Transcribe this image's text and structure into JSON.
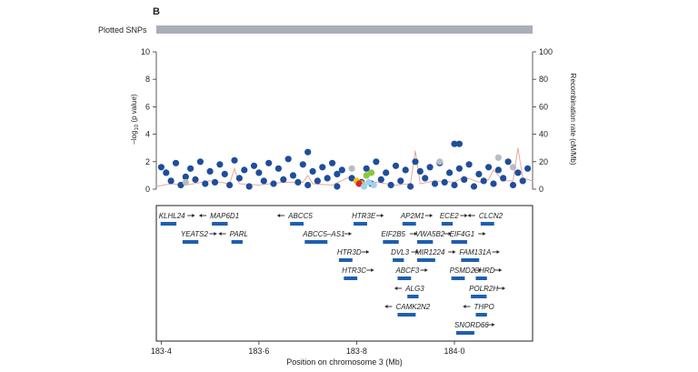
{
  "panel_label": "B",
  "plotted_snps_label": "Plotted SNPs",
  "chart_data": {
    "type": "scatter",
    "title": "",
    "xlabel": "Position on chromosome 3 (Mb)",
    "ylabel_left_prefix": "–log",
    "ylabel_left_sub": "10",
    "ylabel_left_suffix": " (p value)",
    "ylabel_right": "Recombination rate (cM/Mb)",
    "xlim": [
      183.39,
      184.16
    ],
    "ylim": [
      0,
      10
    ],
    "ylim_right": [
      0,
      100
    ],
    "x_ticks": [
      "183·4",
      "183·6",
      "183·8",
      "184·0"
    ],
    "x_tick_values": [
      183.4,
      183.6,
      183.8,
      184.0
    ],
    "y_ticks": [
      "0",
      "2",
      "4",
      "6",
      "8",
      "10"
    ],
    "y_tick_values": [
      0,
      2,
      4,
      6,
      8,
      10
    ],
    "y2_ticks": [
      "0",
      "20",
      "40",
      "60",
      "80",
      "100"
    ],
    "y2_tick_values": [
      0,
      20,
      40,
      60,
      80,
      100
    ],
    "grid": false,
    "colors": {
      "snp": "#1f4e9a",
      "snp_gray": "#b8bcc3",
      "ld_high": "#d9252a",
      "ld_mid": "#f2c31b",
      "ld_green": "#8dc63f",
      "ld_light": "#9fd3ee",
      "recomb": "#e8a89a",
      "gene": "#1f5fae",
      "axis": "#333333",
      "track": "#a9afb8"
    },
    "recombination": {
      "x": [
        183.39,
        183.42,
        183.45,
        183.5,
        183.54,
        183.55,
        183.56,
        183.6,
        183.65,
        183.69,
        183.7,
        183.71,
        183.75,
        183.78,
        183.79,
        183.8,
        183.84,
        183.88,
        183.91,
        183.92,
        183.93,
        183.96,
        184.0,
        184.02,
        184.05,
        184.07,
        184.08,
        184.1,
        184.12,
        184.13,
        184.14,
        184.16
      ],
      "y": [
        2,
        4,
        3,
        6,
        4,
        15,
        4,
        3,
        5,
        5,
        10,
        4,
        3,
        8,
        10,
        3,
        5,
        3,
        4,
        28,
        4,
        6,
        5,
        9,
        5,
        7,
        14,
        6,
        6,
        30,
        8,
        6
      ]
    },
    "series": [
      {
        "name": "",
        "color": "#1f4e9a",
        "x": [
          183.4,
          183.41,
          183.43,
          183.45,
          183.46,
          183.48,
          183.5,
          183.52,
          183.53,
          183.55,
          183.57,
          183.59,
          183.6,
          183.62,
          183.64,
          183.66,
          183.67,
          183.69,
          183.7,
          183.71,
          183.73,
          183.75,
          183.76,
          183.77,
          183.79,
          183.82,
          183.84,
          183.86,
          183.88,
          183.9,
          183.92,
          183.93,
          183.95,
          183.97,
          183.99,
          184.01,
          184.03,
          184.05,
          184.07,
          184.09,
          184.11,
          184.13,
          184.15,
          183.42,
          183.47,
          183.51,
          183.56,
          183.61,
          183.65,
          183.68,
          183.72,
          183.74,
          183.81,
          183.85,
          183.89,
          183.94,
          183.98,
          184.02,
          184.06,
          184.1,
          184.14,
          183.44,
          183.49,
          183.54,
          183.58,
          183.63,
          183.7,
          183.76,
          183.83,
          183.87,
          183.91,
          183.96,
          184.0,
          184.04,
          184.08,
          184.12,
          184.0,
          184.01
        ],
        "y": [
          1.6,
          1.2,
          1.9,
          0.9,
          1.5,
          2.0,
          1.3,
          1.8,
          1.1,
          2.1,
          1.4,
          1.7,
          1.2,
          1.9,
          1.5,
          2.2,
          1.0,
          1.8,
          2.7,
          1.3,
          1.6,
          1.9,
          1.1,
          1.4,
          0.8,
          1.5,
          2.0,
          1.2,
          1.7,
          1.4,
          2.0,
          1.3,
          1.6,
          1.9,
          1.2,
          1.5,
          1.8,
          1.1,
          1.6,
          1.4,
          2.0,
          1.2,
          1.5,
          0.6,
          0.7,
          0.5,
          0.8,
          0.6,
          0.7,
          0.5,
          0.6,
          0.8,
          0.5,
          0.7,
          0.6,
          0.8,
          0.5,
          0.7,
          0.6,
          0.8,
          0.6,
          0.3,
          0.4,
          0.3,
          0.2,
          0.4,
          0.3,
          0.2,
          0.4,
          0.3,
          0.2,
          0.4,
          0.3,
          0.2,
          0.4,
          0.3,
          3.3,
          3.3
        ]
      },
      {
        "name": "",
        "color": "#b8bcc3",
        "x": [
          183.79,
          183.97,
          184.09,
          184.12,
          183.45
        ],
        "y": [
          1.5,
          2.0,
          2.3,
          1.6,
          0.5
        ]
      },
      {
        "name": "",
        "color": "#f2c31b",
        "x": [
          183.8,
          183.81
        ],
        "y": [
          0.6,
          0.4
        ]
      },
      {
        "name": "",
        "color": "#d9252a",
        "x": [
          183.805
        ],
        "y": [
          0.4
        ]
      },
      {
        "name": "",
        "color": "#8dc63f",
        "x": [
          183.82,
          183.83
        ],
        "y": [
          1.0,
          1.2
        ]
      },
      {
        "name": "",
        "color": "#9fd3ee",
        "x": [
          183.815,
          183.825,
          183.835
        ],
        "y": [
          0.2,
          0.5,
          0.3
        ]
      }
    ],
    "genes": [
      {
        "name": "KLHL24",
        "label_x": 183.395,
        "row": 0,
        "arrow": "right"
      },
      {
        "name": "MAP6D1",
        "label_x": 183.5,
        "row": 0,
        "arrow": "left"
      },
      {
        "name": "ABCC5",
        "label_x": 183.66,
        "row": 0,
        "arrow": "left"
      },
      {
        "name": "HTR3E",
        "label_x": 183.79,
        "row": 0,
        "arrow": "right"
      },
      {
        "name": "AP2M1",
        "label_x": 183.89,
        "row": 0,
        "arrow": "right"
      },
      {
        "name": "ECE2",
        "label_x": 183.97,
        "row": 0,
        "arrow": "right"
      },
      {
        "name": "CLCN2",
        "label_x": 184.05,
        "row": 0,
        "arrow": "left"
      },
      {
        "name": "YEATS2",
        "label_x": 183.44,
        "row": 1,
        "arrow": "right"
      },
      {
        "name": "PARL",
        "label_x": 183.54,
        "row": 1,
        "arrow": "left"
      },
      {
        "name": "ABCC5–AS1",
        "label_x": 183.69,
        "row": 1,
        "arrow": "right"
      },
      {
        "name": "EIF2B5",
        "label_x": 183.85,
        "row": 1,
        "arrow": "right"
      },
      {
        "name": "VWA5B2",
        "label_x": 183.92,
        "row": 1,
        "arrow": "right"
      },
      {
        "name": "EIF4G1",
        "label_x": 183.99,
        "row": 1,
        "arrow": "right"
      },
      {
        "name": "HTR3D",
        "label_x": 183.76,
        "row": 2,
        "arrow": "right"
      },
      {
        "name": "DVL3",
        "label_x": 183.87,
        "row": 2,
        "arrow": "right"
      },
      {
        "name": "MIR1224",
        "label_x": 183.92,
        "row": 2,
        "arrow": "right"
      },
      {
        "name": "FAM131A",
        "label_x": 184.01,
        "row": 2,
        "arrow": "right"
      },
      {
        "name": "HTR3C",
        "label_x": 183.77,
        "row": 3,
        "arrow": "right"
      },
      {
        "name": "ABCF3",
        "label_x": 183.88,
        "row": 3,
        "arrow": "right"
      },
      {
        "name": "PSMD2",
        "label_x": 183.99,
        "row": 3,
        "arrow": "right"
      },
      {
        "name": "CHRD",
        "label_x": 184.04,
        "row": 3,
        "arrow": "right"
      },
      {
        "name": "ALG3",
        "label_x": 183.9,
        "row": 4,
        "arrow": "left"
      },
      {
        "name": "POLR2H",
        "label_x": 184.03,
        "row": 4,
        "arrow": "right"
      },
      {
        "name": "CAMK2N2",
        "label_x": 183.88,
        "row": 5,
        "arrow": "left"
      },
      {
        "name": "THPO",
        "label_x": 184.04,
        "row": 5,
        "arrow": "left"
      },
      {
        "name": "SNORD66",
        "label_x": 184.0,
        "row": 6,
        "arrow": "right"
      }
    ]
  }
}
